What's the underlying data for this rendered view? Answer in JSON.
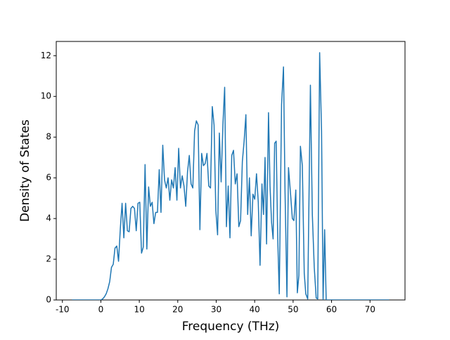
{
  "chart_data": {
    "type": "line",
    "xlabel": "Frequency (THz)",
    "ylabel": "Density of States",
    "x": [
      -7.5,
      0,
      0.46,
      0.92,
      1.38,
      1.84,
      2.3,
      2.76,
      3.22,
      3.68,
      4.14,
      4.6,
      5.06,
      5.52,
      5.98,
      6.44,
      6.9,
      7.36,
      7.82,
      8.28,
      8.74,
      9.2,
      9.66,
      10.12,
      10.58,
      11.04,
      11.5,
      11.96,
      12.42,
      12.88,
      13.34,
      13.8,
      14.26,
      14.72,
      15.18,
      15.64,
      16.1,
      16.56,
      17.02,
      17.48,
      17.94,
      18.4,
      18.86,
      19.32,
      19.78,
      20.24,
      20.7,
      21.16,
      21.62,
      22.08,
      22.54,
      23,
      23.46,
      23.92,
      24.38,
      24.84,
      25.3,
      25.76,
      26.22,
      26.68,
      27.14,
      27.6,
      28.06,
      28.52,
      28.98,
      29.44,
      29.9,
      30.36,
      30.82,
      31.28,
      31.74,
      32.2,
      32.66,
      33.12,
      33.58,
      34.04,
      34.5,
      34.96,
      35.42,
      35.88,
      36.34,
      36.8,
      37.26,
      37.72,
      38.18,
      38.64,
      39.1,
      39.56,
      40.02,
      40.48,
      40.94,
      41.4,
      41.9,
      42.3,
      42.7,
      43.1,
      43.6,
      44.0,
      44.4,
      44.8,
      45.2,
      45.6,
      46.0,
      46.4,
      47.0,
      47.5,
      47.9,
      48.4,
      48.8,
      49.3,
      49.8,
      50.2,
      50.7,
      51.1,
      51.5,
      51.9,
      52.4,
      52.9,
      53.3,
      53.8,
      54.5,
      55.0,
      55.5,
      56.0,
      56.4,
      56.9,
      57.4,
      57.8,
      58.2,
      58.6,
      60,
      75
    ],
    "series": [
      {
        "color": "#1f77b4",
        "values": [
          0,
          0,
          0.05,
          0.15,
          0.3,
          0.55,
          0.9,
          1.6,
          1.75,
          2.55,
          2.65,
          1.9,
          3.5,
          4.75,
          3.05,
          4.75,
          3.4,
          3.35,
          4.5,
          4.6,
          4.5,
          3.4,
          4.75,
          4.8,
          2.3,
          2.6,
          6.65,
          2.5,
          5.55,
          4.6,
          4.8,
          3.75,
          4.3,
          4.3,
          6.4,
          4.3,
          7.6,
          5.9,
          5.5,
          6.0,
          4.9,
          5.9,
          5.5,
          6.5,
          4.9,
          7.45,
          5.5,
          6.1,
          5.6,
          4.6,
          6.3,
          7.1,
          5.7,
          5.5,
          8.3,
          8.8,
          8.6,
          3.45,
          7.2,
          6.6,
          6.7,
          7.2,
          5.6,
          5.5,
          9.5,
          8.6,
          4.4,
          3.2,
          8.2,
          5.8,
          8.6,
          10.45,
          3.6,
          5.6,
          3.05,
          7.1,
          7.35,
          5.7,
          6.2,
          3.6,
          3.9,
          6.8,
          7.8,
          9.1,
          4.2,
          6.0,
          3.15,
          5.2,
          4.95,
          6.2,
          4.8,
          1.7,
          5.7,
          4.2,
          7.0,
          2.75,
          9.2,
          5.6,
          3.8,
          3.0,
          7.7,
          7.8,
          3.0,
          0.3,
          9.6,
          11.45,
          5.3,
          0.15,
          6.5,
          5.3,
          4.0,
          3.9,
          5.4,
          0.35,
          1.2,
          7.55,
          6.6,
          1.3,
          0.3,
          0.05,
          10.55,
          4.2,
          1.6,
          0.1,
          0.05,
          12.15,
          8.3,
          0,
          3.45,
          0,
          0,
          0
        ]
      }
    ],
    "xlim": [
      -11.6,
      79.1
    ],
    "xticks": [
      -10,
      0,
      10,
      20,
      30,
      40,
      50,
      60,
      70
    ],
    "ylim": [
      0,
      12.7
    ],
    "yticks": [
      0,
      2,
      4,
      6,
      8,
      10,
      12
    ]
  }
}
